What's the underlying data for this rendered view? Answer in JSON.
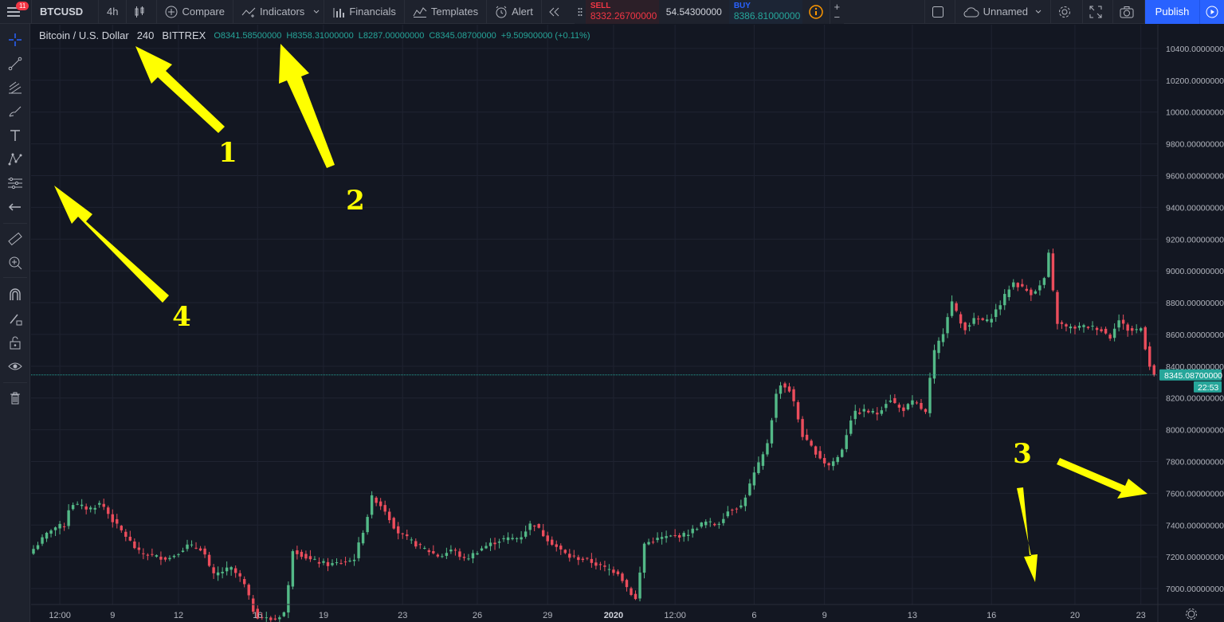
{
  "toolbar": {
    "menu_badge": "11",
    "symbol": "BTCUSD",
    "interval": "4h",
    "compare_label": "Compare",
    "indicators_label": "Indicators",
    "financials_label": "Financials",
    "templates_label": "Templates",
    "alert_label": "Alert",
    "sell_label": "SELL",
    "sell_price": "8332.26700000",
    "spread": "54.54300000",
    "buy_label": "BUY",
    "buy_price": "8386.81000000",
    "layout_name": "Unnamed",
    "publish_label": "Publish"
  },
  "legend": {
    "title": "Bitcoin / U.S. Dollar",
    "interval": "240",
    "exchange": "BITTREX",
    "open": "O8341.58500000",
    "high": "H8358.31000000",
    "low": "L8287.00000000",
    "close": "C8345.08700000",
    "change": "+9.50900000 (+0.11%)"
  },
  "price_tag": {
    "value": "8345.08700000",
    "countdown": "22:53"
  },
  "annotations": [
    {
      "label": "1",
      "color": "#ffff00"
    },
    {
      "label": "2",
      "color": "#ffff00"
    },
    {
      "label": "3",
      "color": "#ffff00"
    },
    {
      "label": "4",
      "color": "#ffff00"
    }
  ],
  "colors": {
    "background": "#131722",
    "grid": "#1f2331",
    "up": "#26a69a",
    "down": "#ef5350",
    "up_candle": "#53b987",
    "down_candle": "#eb4d5c",
    "accent": "#2962ff"
  },
  "chart_data": {
    "type": "candlestick",
    "title": "Bitcoin / U.S. Dollar",
    "ylim": [
      6900,
      10550
    ],
    "y_ticks": [
      "10400.00000000",
      "10200.00000000",
      "10000.00000000",
      "9800.00000000",
      "9600.00000000",
      "9400.00000000",
      "9200.00000000",
      "9000.00000000",
      "8800.00000000",
      "8600.00000000",
      "8400.00000000",
      "8200.00000000",
      "8000.00000000",
      "7800.00000000",
      "7600.00000000",
      "7400.00000000",
      "7200.00000000",
      "7000.00000000"
    ],
    "x_ticks": [
      "12:00",
      "9",
      "12",
      "16",
      "19",
      "23",
      "26",
      "29",
      "2020",
      "12:00",
      "6",
      "9",
      "13",
      "16",
      "20",
      "23"
    ],
    "x_tick_candle_index": [
      6,
      18,
      33,
      51,
      66,
      84,
      101,
      117,
      132,
      146,
      164,
      180,
      200,
      218,
      237,
      252
    ],
    "candle_count": 256,
    "last_price": 8345.087,
    "keypoints": [
      [
        0,
        7250
      ],
      [
        6,
        7380
      ],
      [
        10,
        7400
      ],
      [
        12,
        7540
      ],
      [
        18,
        7500
      ],
      [
        22,
        7540
      ],
      [
        26,
        7420
      ],
      [
        30,
        7330
      ],
      [
        34,
        7230
      ],
      [
        40,
        7200
      ],
      [
        44,
        7190
      ],
      [
        50,
        7270
      ],
      [
        55,
        7250
      ],
      [
        58,
        7080
      ],
      [
        64,
        7130
      ],
      [
        68,
        7050
      ],
      [
        72,
        6830
      ],
      [
        78,
        6800
      ],
      [
        82,
        6860
      ],
      [
        84,
        7250
      ],
      [
        90,
        7180
      ],
      [
        96,
        7150
      ],
      [
        104,
        7180
      ],
      [
        108,
        7420
      ],
      [
        110,
        7580
      ],
      [
        114,
        7500
      ],
      [
        118,
        7360
      ],
      [
        124,
        7280
      ],
      [
        132,
        7200
      ],
      [
        136,
        7250
      ],
      [
        140,
        7180
      ],
      [
        146,
        7260
      ],
      [
        152,
        7310
      ],
      [
        158,
        7320
      ],
      [
        162,
        7420
      ],
      [
        166,
        7330
      ],
      [
        170,
        7260
      ],
      [
        174,
        7200
      ],
      [
        180,
        7180
      ],
      [
        184,
        7140
      ],
      [
        190,
        7100
      ],
      [
        193,
        7000
      ],
      [
        196,
        6920
      ],
      [
        198,
        7280
      ],
      [
        204,
        7320
      ],
      [
        212,
        7340
      ],
      [
        218,
        7420
      ],
      [
        222,
        7400
      ],
      [
        226,
        7500
      ],
      [
        230,
        7520
      ],
      [
        234,
        7720
      ],
      [
        238,
        7880
      ],
      [
        242,
        8300
      ],
      [
        246,
        8240
      ],
      [
        250,
        7950
      ],
      [
        254,
        7860
      ],
      [
        258,
        7770
      ],
      [
        262,
        7840
      ],
      [
        266,
        8100
      ],
      [
        270,
        8120
      ],
      [
        274,
        8100
      ],
      [
        278,
        8200
      ],
      [
        282,
        8120
      ],
      [
        286,
        8180
      ],
      [
        290,
        8100
      ],
      [
        292,
        8460
      ],
      [
        296,
        8640
      ],
      [
        298,
        8820
      ],
      [
        302,
        8630
      ],
      [
        306,
        8700
      ],
      [
        310,
        8680
      ],
      [
        314,
        8790
      ],
      [
        318,
        8930
      ],
      [
        324,
        8860
      ],
      [
        328,
        8920
      ],
      [
        330,
        9130
      ],
      [
        332,
        8680
      ],
      [
        336,
        8640
      ],
      [
        342,
        8650
      ],
      [
        346,
        8640
      ],
      [
        350,
        8580
      ],
      [
        352,
        8700
      ],
      [
        356,
        8620
      ],
      [
        360,
        8640
      ],
      [
        362,
        8430
      ],
      [
        364,
        8345
      ]
    ]
  }
}
